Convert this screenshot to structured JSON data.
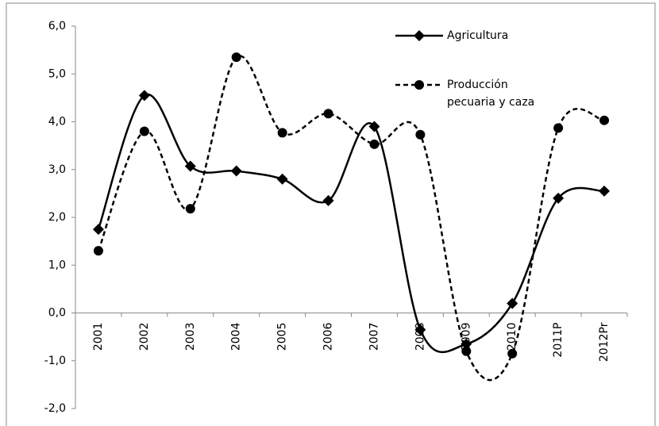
{
  "chart_data": {
    "type": "line",
    "categories": [
      "2001",
      "2002",
      "2003",
      "2004",
      "2005",
      "2006",
      "2007",
      "2008",
      "2009",
      "2010",
      "2011P",
      "2012Pr"
    ],
    "series": [
      {
        "name": "Agricultura",
        "color": "#000000",
        "dash": false,
        "marker": "diamond",
        "values": [
          1.75,
          4.55,
          3.07,
          2.97,
          2.8,
          2.35,
          3.9,
          -0.35,
          -0.65,
          0.2,
          2.4,
          2.55
        ]
      },
      {
        "name": "Producción pecuaria y caza",
        "color": "#000000",
        "dash": true,
        "marker": "circle",
        "values": [
          1.3,
          3.8,
          2.18,
          5.35,
          3.77,
          4.17,
          3.53,
          3.73,
          -0.8,
          -0.85,
          3.87,
          4.03
        ]
      }
    ],
    "ylim": [
      -2,
      6
    ],
    "yticks": [
      {
        "value": -2,
        "label": "-2,0"
      },
      {
        "value": -1,
        "label": "-1,0"
      },
      {
        "value": 0,
        "label": "0,0"
      },
      {
        "value": 1,
        "label": "1,0"
      },
      {
        "value": 2,
        "label": "2,0"
      },
      {
        "value": 3,
        "label": "3,0"
      },
      {
        "value": 4,
        "label": "4,0"
      },
      {
        "value": 5,
        "label": "5,0"
      },
      {
        "value": 6,
        "label": "6,0"
      }
    ],
    "smooth": true
  }
}
